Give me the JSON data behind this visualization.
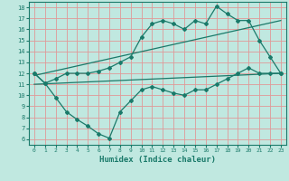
{
  "xlabel": "Humidex (Indice chaleur)",
  "bg_color": "#c0e8e0",
  "grid_color": "#e09898",
  "line_color": "#1a7a6a",
  "xlim": [
    -0.5,
    23.5
  ],
  "ylim": [
    5.5,
    18.5
  ],
  "xticks": [
    0,
    1,
    2,
    3,
    4,
    5,
    6,
    7,
    8,
    9,
    10,
    11,
    12,
    13,
    14,
    15,
    16,
    17,
    18,
    19,
    20,
    21,
    22,
    23
  ],
  "yticks": [
    6,
    7,
    8,
    9,
    10,
    11,
    12,
    13,
    14,
    15,
    16,
    17,
    18
  ],
  "upper_line_x": [
    0,
    1,
    2,
    3,
    4,
    5,
    6,
    7,
    8,
    9,
    10,
    11,
    12,
    13,
    14,
    15,
    16,
    17,
    18,
    19,
    20,
    21,
    22,
    23
  ],
  "upper_line_y": [
    12.0,
    11.1,
    11.5,
    12.0,
    12.0,
    12.0,
    12.2,
    12.5,
    13.0,
    13.5,
    15.3,
    16.5,
    16.8,
    16.5,
    16.0,
    16.8,
    16.5,
    18.1,
    17.4,
    16.8,
    16.8,
    15.0,
    13.5,
    12.0
  ],
  "lower_line_x": [
    0,
    1,
    2,
    3,
    4,
    5,
    6,
    7,
    8,
    9,
    10,
    11,
    12,
    13,
    14,
    15,
    16,
    17,
    18,
    19,
    20,
    21,
    22,
    23
  ],
  "lower_line_y": [
    12.0,
    11.1,
    9.8,
    8.5,
    7.8,
    7.2,
    6.5,
    6.1,
    8.5,
    9.5,
    10.5,
    10.8,
    10.5,
    10.2,
    10.0,
    10.5,
    10.5,
    11.0,
    11.5,
    12.0,
    12.5,
    12.0,
    12.0,
    12.0
  ],
  "trend1_x": [
    0,
    23
  ],
  "trend1_y": [
    11.8,
    16.8
  ],
  "trend2_x": [
    0,
    23
  ],
  "trend2_y": [
    11.0,
    12.0
  ]
}
